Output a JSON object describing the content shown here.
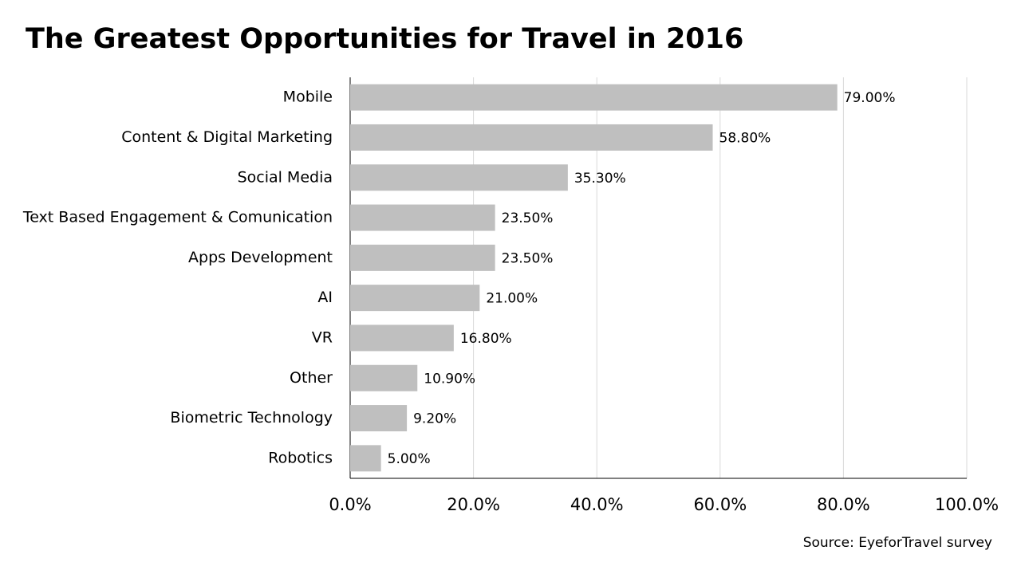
{
  "chart_data": {
    "type": "bar",
    "orientation": "horizontal",
    "title": "The Greatest Opportunities for Travel in 2016",
    "source": "Source: EyeforTravel survey",
    "categories": [
      "Mobile",
      "Content & Digital Marketing",
      "Social Media",
      "Text Based Engagement & Comunication",
      "Apps Development",
      "AI",
      "VR",
      "Other",
      "Biometric Technology",
      "Robotics"
    ],
    "values": [
      79.0,
      58.8,
      35.3,
      23.5,
      23.5,
      21.0,
      16.8,
      10.9,
      9.2,
      5.0
    ],
    "value_labels": [
      "79.00%",
      "58.80%",
      "35.30%",
      "23.50%",
      "23.50%",
      "21.00%",
      "16.80%",
      "10.90%",
      "9.20%",
      "5.00%"
    ],
    "color": "#bfbfbf",
    "xlim": [
      0,
      100
    ],
    "xticks": [
      {
        "value": 0,
        "label": "0.0%"
      },
      {
        "value": 20,
        "label": "20.0%"
      },
      {
        "value": 40,
        "label": "40.0%"
      },
      {
        "value": 60,
        "label": "60.0%"
      },
      {
        "value": 80,
        "label": "80.0%"
      },
      {
        "value": 100,
        "label": "100.0%"
      }
    ],
    "grid": true
  }
}
